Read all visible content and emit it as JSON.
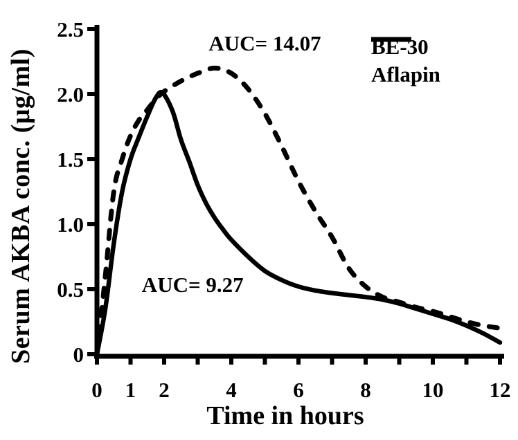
{
  "figure": {
    "background": "#ffffff",
    "ink_color": "#000000"
  },
  "chart_data": {
    "type": "line",
    "title": "",
    "xlabel": "Time in hours",
    "ylabel": "Serum AKBA conc. (μg/ml)",
    "xlim": [
      0,
      12
    ],
    "ylim": [
      0,
      2.5
    ],
    "grid": false,
    "legend_position": "top-right",
    "x_minor_ticks": [
      0,
      1,
      2,
      3,
      4,
      5,
      6,
      7,
      8,
      9,
      10,
      11,
      12
    ],
    "x_labeled_ticks": [
      {
        "value": 0,
        "label": "0"
      },
      {
        "value": 1,
        "label": "1"
      },
      {
        "value": 2,
        "label": "2"
      },
      {
        "value": 4,
        "label": "4"
      },
      {
        "value": 6,
        "label": "6"
      },
      {
        "value": 8,
        "label": "8"
      },
      {
        "value": 10,
        "label": "10"
      },
      {
        "value": 12,
        "label": "12"
      }
    ],
    "y_ticks": [
      {
        "value": 0.0,
        "label": "0"
      },
      {
        "value": 0.5,
        "label": "0.5"
      },
      {
        "value": 1.0,
        "label": "1.0"
      },
      {
        "value": 1.5,
        "label": "1.5"
      },
      {
        "value": 2.0,
        "label": "2.0"
      },
      {
        "value": 2.5,
        "label": "2.5"
      }
    ],
    "series": [
      {
        "name": "BE-30",
        "style": "solid",
        "color": "#000000",
        "auc": 9.27,
        "peak": {
          "time": 1.95,
          "conc": 2.0
        },
        "points": [
          [
            0,
            0
          ],
          [
            0.25,
            0.35
          ],
          [
            0.5,
            0.85
          ],
          [
            0.75,
            1.25
          ],
          [
            1,
            1.5
          ],
          [
            1.25,
            1.67
          ],
          [
            1.5,
            1.83
          ],
          [
            1.75,
            1.97
          ],
          [
            1.95,
            2.01
          ],
          [
            2.25,
            1.87
          ],
          [
            2.5,
            1.65
          ],
          [
            2.75,
            1.48
          ],
          [
            3,
            1.3
          ],
          [
            3.25,
            1.16
          ],
          [
            3.5,
            1.05
          ],
          [
            3.75,
            0.96
          ],
          [
            4,
            0.88
          ],
          [
            4.5,
            0.75
          ],
          [
            5,
            0.64
          ],
          [
            5.5,
            0.57
          ],
          [
            6,
            0.52
          ],
          [
            6.5,
            0.49
          ],
          [
            7,
            0.47
          ],
          [
            7.5,
            0.455
          ],
          [
            8,
            0.44
          ],
          [
            8.5,
            0.42
          ],
          [
            9,
            0.39
          ],
          [
            9.5,
            0.35
          ],
          [
            10,
            0.31
          ],
          [
            10.5,
            0.27
          ],
          [
            11,
            0.22
          ],
          [
            11.5,
            0.16
          ],
          [
            12,
            0.09
          ]
        ]
      },
      {
        "name": "Aflapin",
        "style": "dashed",
        "color": "#000000",
        "auc": 14.07,
        "peak": {
          "time": 3.5,
          "conc": 2.2
        },
        "points": [
          [
            0,
            0
          ],
          [
            0.25,
            0.6
          ],
          [
            0.5,
            1.25
          ],
          [
            0.75,
            1.5
          ],
          [
            1,
            1.68
          ],
          [
            1.25,
            1.8
          ],
          [
            1.5,
            1.88
          ],
          [
            1.75,
            1.96
          ],
          [
            2,
            2.02
          ],
          [
            2.5,
            2.1
          ],
          [
            3,
            2.16
          ],
          [
            3.5,
            2.2
          ],
          [
            4,
            2.16
          ],
          [
            4.5,
            2.04
          ],
          [
            5,
            1.85
          ],
          [
            5.5,
            1.6
          ],
          [
            6,
            1.33
          ],
          [
            6.5,
            1.1
          ],
          [
            7,
            0.9
          ],
          [
            7.5,
            0.66
          ],
          [
            8,
            0.52
          ],
          [
            8.5,
            0.44
          ],
          [
            9,
            0.4
          ],
          [
            9.5,
            0.36
          ],
          [
            10,
            0.33
          ],
          [
            10.5,
            0.29
          ],
          [
            11,
            0.25
          ],
          [
            11.5,
            0.22
          ],
          [
            12,
            0.2
          ]
        ]
      }
    ],
    "annotations": [
      {
        "text": "AUC= 14.07",
        "x": 5.0,
        "y": 2.39,
        "series": "Aflapin"
      },
      {
        "text": "AUC= 9.27",
        "x": 2.85,
        "y": 0.53,
        "series": "BE-30"
      }
    ]
  },
  "legend": {
    "items": [
      {
        "label": "BE-30",
        "line": "solid"
      },
      {
        "label": "Aflapin",
        "line": "dashed"
      }
    ]
  }
}
